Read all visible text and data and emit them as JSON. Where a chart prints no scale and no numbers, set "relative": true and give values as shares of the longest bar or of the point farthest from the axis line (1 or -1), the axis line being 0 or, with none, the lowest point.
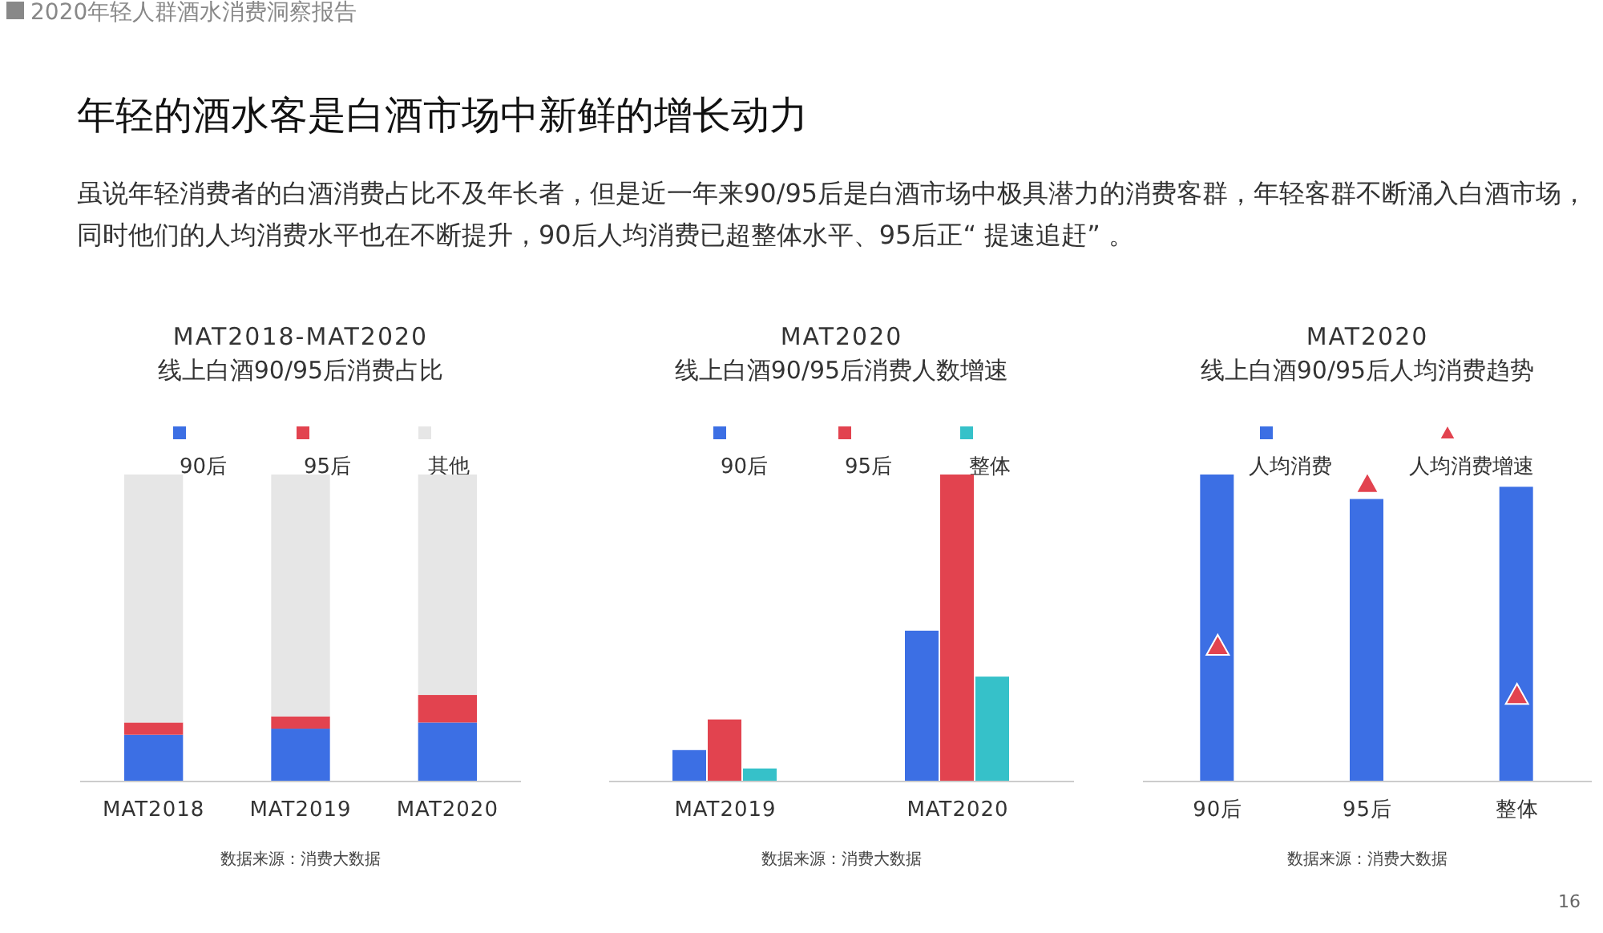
{
  "chart_data": [
    {
      "type": "other",
      "title": "年轻的酒水客是白酒市场中新鲜的增长动力",
      "subtitle": "虽说年轻消费者的白酒消费占比不及年长者，但是近一年来90/95后是白酒市场中极具潜力的消费客群，年轻客群不断涌入白酒市场，同时他们的人均消费水平也在不断提升，90后人均消费已超整体水平、95后正“ 提速追赶”  。",
      "annotations": [
        "2020年轻人群酒水消费洞察报告",
        "16"
      ]
    },
    {
      "type": "bar",
      "stacked": true,
      "relative": true,
      "title": "MAT2018-MAT2020",
      "subtitle": "线上白酒90/95后消费占比",
      "categories": [
        "MAT2018",
        "MAT2019",
        "MAT2020"
      ],
      "legend": "top",
      "annotations": [
        "数据来源：消费大数据"
      ],
      "series": [
        {
          "name": "90后",
          "color": "#3c6fe4",
          "values": [
            0.15,
            0.17,
            0.19
          ]
        },
        {
          "name": "95后",
          "color": "#e2434f",
          "values": [
            0.04,
            0.04,
            0.09
          ]
        },
        {
          "name": "其他",
          "color": "#e6e6e6",
          "values": [
            0.81,
            0.79,
            0.72
          ]
        }
      ]
    },
    {
      "type": "bar",
      "relative": true,
      "title": "MAT2020",
      "subtitle": "线上白酒90/95后消费人数增速",
      "categories": [
        "MAT2019",
        "MAT2020"
      ],
      "legend": "top",
      "annotations": [
        "数据来源：消费大数据"
      ],
      "series": [
        {
          "name": "90后",
          "color": "#3c6fe4",
          "values": [
            0.1,
            0.49
          ]
        },
        {
          "name": "95后",
          "color": "#e2434f",
          "values": [
            0.2,
            1.0
          ]
        },
        {
          "name": "整体",
          "color": "#36c1c9",
          "values": [
            0.04,
            0.34
          ]
        }
      ]
    },
    {
      "type": "bar",
      "relative": true,
      "title": "MAT2020",
      "subtitle": "线上白酒90/95后人均消费趋势",
      "categories": [
        "90后",
        "95后",
        "整体"
      ],
      "legend": "top",
      "annotations": [
        "数据来源：消费大数据"
      ],
      "series": [
        {
          "name": "人均消费",
          "color": "#3c6fe4",
          "values": [
            1.0,
            0.92,
            0.96
          ]
        },
        {
          "name": "人均消费增速",
          "type": "scatter",
          "marker": "triangle",
          "color": "#e2434f",
          "values": [
            0.44,
            0.97,
            0.28
          ]
        }
      ]
    }
  ]
}
